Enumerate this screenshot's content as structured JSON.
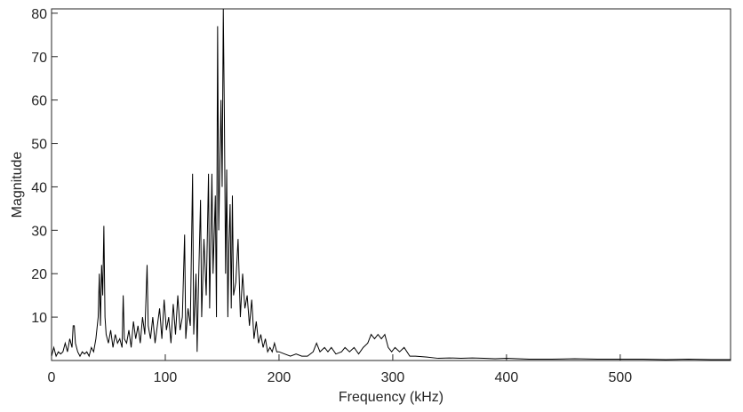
{
  "chart_data": {
    "type": "line",
    "xlabel": "Frequency (kHz)",
    "ylabel": "Magnitude",
    "xlim": [
      0,
      597
    ],
    "ylim": [
      0,
      81
    ],
    "xticks": [
      0,
      100,
      200,
      300,
      400,
      500
    ],
    "yticks": [
      10,
      20,
      30,
      40,
      50,
      60,
      70,
      80
    ],
    "grid": false,
    "series": [
      {
        "name": "Magnitude",
        "color": "#000000",
        "x": [
          0,
          2,
          4,
          6,
          8,
          10,
          12,
          14,
          16,
          18,
          19,
          20,
          21,
          23,
          25,
          27,
          29,
          31,
          33,
          35,
          37,
          39,
          41,
          42,
          43,
          44,
          45,
          46,
          47,
          48,
          50,
          52,
          54,
          56,
          58,
          60,
          62,
          63,
          64,
          66,
          68,
          70,
          72,
          74,
          76,
          78,
          80,
          82,
          84,
          85,
          87,
          89,
          91,
          93,
          95,
          97,
          99,
          101,
          103,
          105,
          107,
          109,
          111,
          113,
          115,
          117,
          118,
          120,
          122,
          124,
          125,
          127,
          128,
          129,
          131,
          132,
          134,
          136,
          138,
          139,
          141,
          142,
          144,
          145,
          146,
          147,
          149,
          150,
          151,
          152,
          153,
          154,
          155,
          156,
          157,
          158,
          159,
          160,
          162,
          164,
          166,
          168,
          170,
          172,
          174,
          176,
          178,
          180,
          182,
          184,
          186,
          188,
          190,
          192,
          194,
          196,
          198,
          200,
          205,
          210,
          215,
          220,
          225,
          230,
          233,
          236,
          240,
          243,
          246,
          250,
          255,
          258,
          262,
          266,
          270,
          274,
          278,
          281,
          284,
          287,
          290,
          293,
          296,
          299,
          302,
          306,
          310,
          315,
          320,
          330,
          340,
          350,
          360,
          370,
          380,
          390,
          400,
          420,
          440,
          460,
          480,
          500,
          520,
          540,
          560,
          580,
          597
        ],
        "values": [
          1,
          3,
          1,
          2,
          1.5,
          2,
          4,
          2,
          5,
          3,
          8,
          8,
          4,
          2,
          1,
          2,
          1.5,
          2,
          1,
          3,
          2,
          5,
          10,
          20,
          8,
          22,
          15,
          31,
          10,
          6,
          4,
          7,
          3,
          6,
          4,
          5,
          3,
          15,
          5,
          4,
          7,
          3,
          9,
          5,
          8,
          4,
          10,
          6,
          22,
          8,
          5,
          10,
          4,
          8,
          12,
          5,
          14,
          7,
          10,
          4,
          13,
          6,
          15,
          7,
          10,
          29,
          5,
          12,
          8,
          43,
          6,
          20,
          2,
          15,
          37,
          10,
          28,
          15,
          43,
          12,
          43,
          20,
          38,
          10,
          77,
          30,
          60,
          40,
          81,
          55,
          20,
          44,
          10,
          27,
          36,
          12,
          38,
          15,
          18,
          28,
          10,
          20,
          12,
          15,
          8,
          14,
          5,
          9,
          4,
          6,
          3,
          5,
          2,
          3,
          2,
          4,
          2,
          2,
          1.5,
          1,
          1.5,
          1,
          1,
          2,
          4,
          2,
          3,
          2,
          3,
          1.5,
          2,
          3,
          2,
          3,
          1.5,
          3,
          4,
          6,
          5,
          6,
          5,
          6,
          3,
          2,
          3,
          2,
          3,
          1,
          1,
          0.8,
          0.5,
          0.6,
          0.5,
          0.6,
          0.5,
          0.4,
          0.5,
          0.3,
          0.3,
          0.4,
          0.3,
          0.3,
          0.3,
          0.2,
          0.3,
          0.2,
          0.2
        ]
      }
    ]
  }
}
